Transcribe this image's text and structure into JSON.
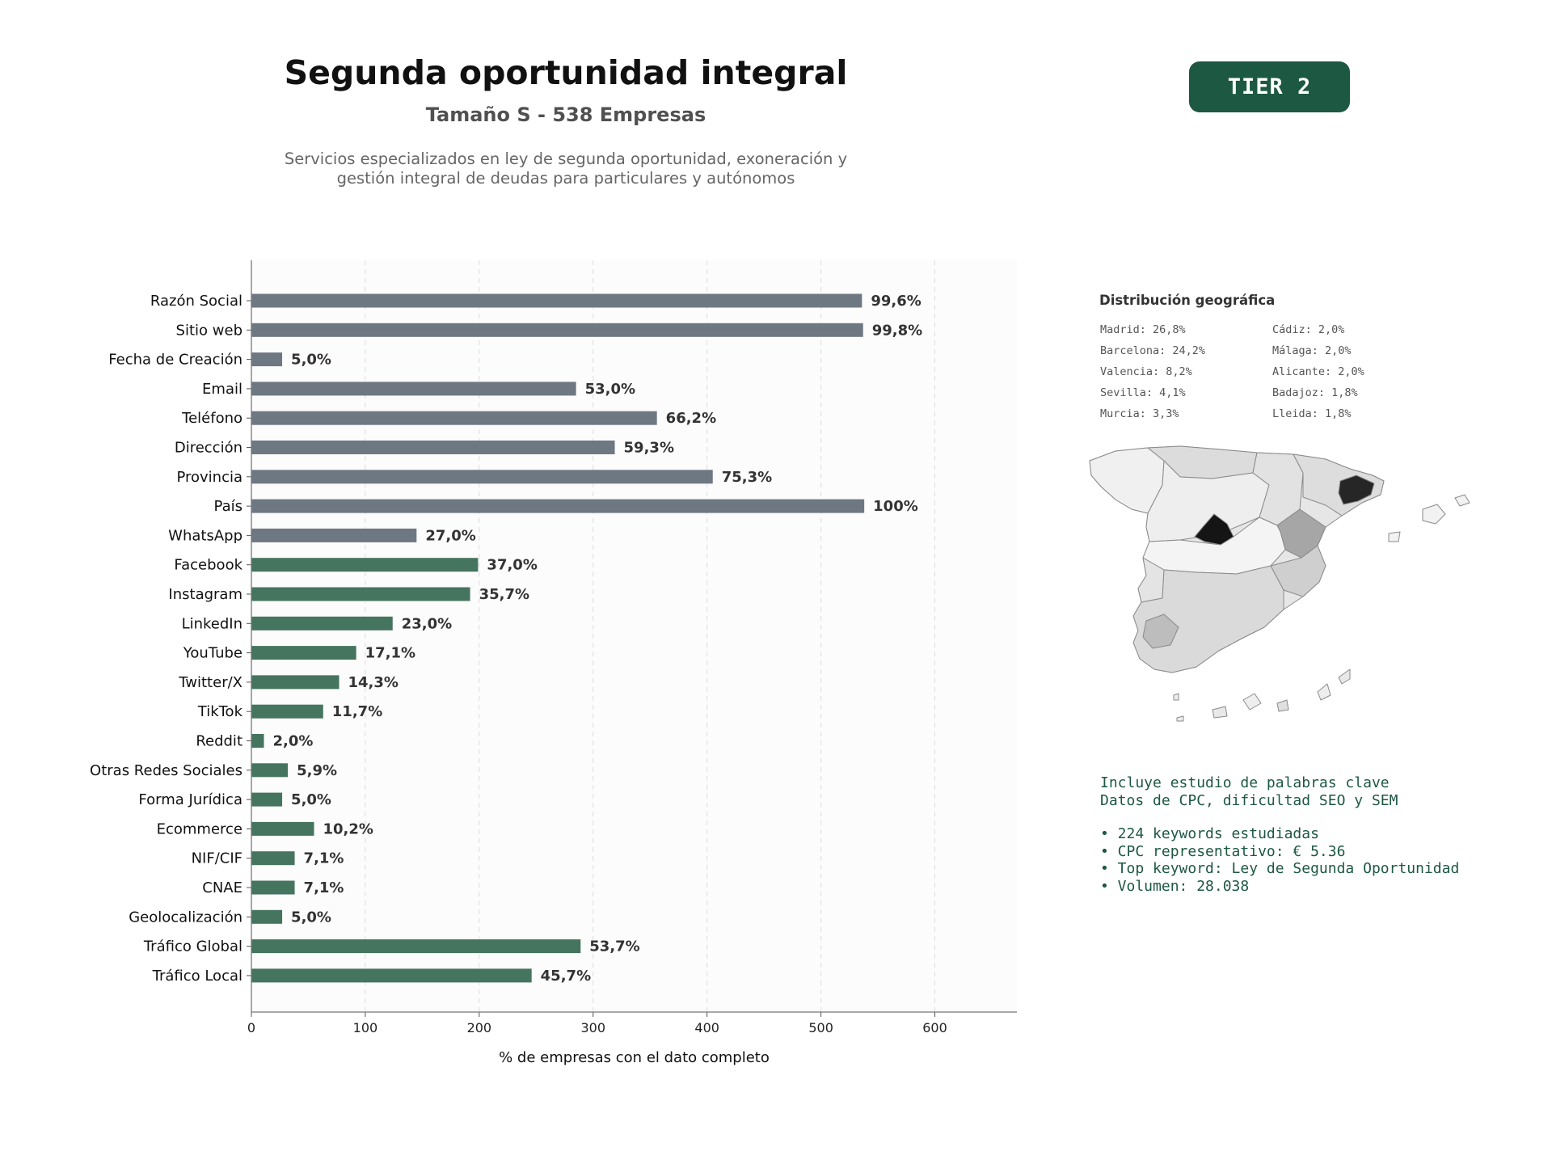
{
  "header": {
    "title": "Segunda oportunidad integral",
    "subtitle": "Tamaño S - 538 Empresas",
    "description": [
      "Servicios especializados en ley de segunda oportunidad, exoneración y",
      "gestión integral de deudas para particulares y autónomos"
    ],
    "tier": "TIER 2"
  },
  "chart_data": {
    "type": "bar",
    "orientation": "horizontal",
    "xlabel": "% de empresas con el dato completo",
    "xlim": [
      0,
      672
    ],
    "xticks": [
      0,
      100,
      200,
      300,
      400,
      500,
      600
    ],
    "grid": true,
    "categories": [
      "Razón Social",
      "Sitio web",
      "Fecha de Creación",
      "Email",
      "Teléfono",
      "Dirección",
      "Provincia",
      "País",
      "WhatsApp",
      "Facebook",
      "Instagram",
      "LinkedIn",
      "YouTube",
      "Twitter/X",
      "TikTok",
      "Reddit",
      "Otras Redes Sociales",
      "Forma Jurídica",
      "Ecommerce",
      "NIF/CIF",
      "CNAE",
      "Geolocalización",
      "Tráfico Global",
      "Tráfico Local"
    ],
    "values": [
      536,
      537,
      27,
      285,
      356,
      319,
      405,
      538,
      145,
      199,
      192,
      124,
      92,
      77,
      63,
      11,
      32,
      27,
      55,
      38,
      38,
      27,
      289,
      246
    ],
    "labels": [
      "99,6%",
      "99,8%",
      "5,0%",
      "53,0%",
      "66,2%",
      "59,3%",
      "75,3%",
      "100%",
      "27,0%",
      "37,0%",
      "35,7%",
      "23,0%",
      "17,1%",
      "14,3%",
      "11,7%",
      "2,0%",
      "5,9%",
      "5,0%",
      "10,2%",
      "7,1%",
      "7,1%",
      "5,0%",
      "53,7%",
      "45,7%"
    ],
    "group": [
      "basic",
      "basic",
      "basic",
      "basic",
      "basic",
      "basic",
      "basic",
      "basic",
      "basic",
      "social",
      "social",
      "social",
      "social",
      "social",
      "social",
      "social",
      "social",
      "social",
      "social",
      "social",
      "social",
      "social",
      "social",
      "social"
    ],
    "colors": {
      "basic": "#6e7883",
      "social": "#45745f"
    }
  },
  "geo": {
    "title": "Distribución geográfica",
    "left": [
      "Madrid: 26,8%",
      "Barcelona: 24,2%",
      "Valencia: 8,2%",
      "Sevilla: 4,1%",
      "Murcia: 3,3%"
    ],
    "right": [
      "Cádiz: 2,0%",
      "Málaga: 2,0%",
      "Alicante: 2,0%",
      "Badajoz: 1,8%",
      "Lleida: 1,8%"
    ]
  },
  "keywords": {
    "lines": [
      "Incluye estudio de palabras clave",
      "Datos de CPC, dificultad SEO y SEM"
    ],
    "bullets": [
      "• 224 keywords estudiadas",
      "• CPC representativo: € 5.36",
      "• Top keyword: Ley de Segunda Oportunidad",
      "• Volumen: 28.038"
    ]
  }
}
